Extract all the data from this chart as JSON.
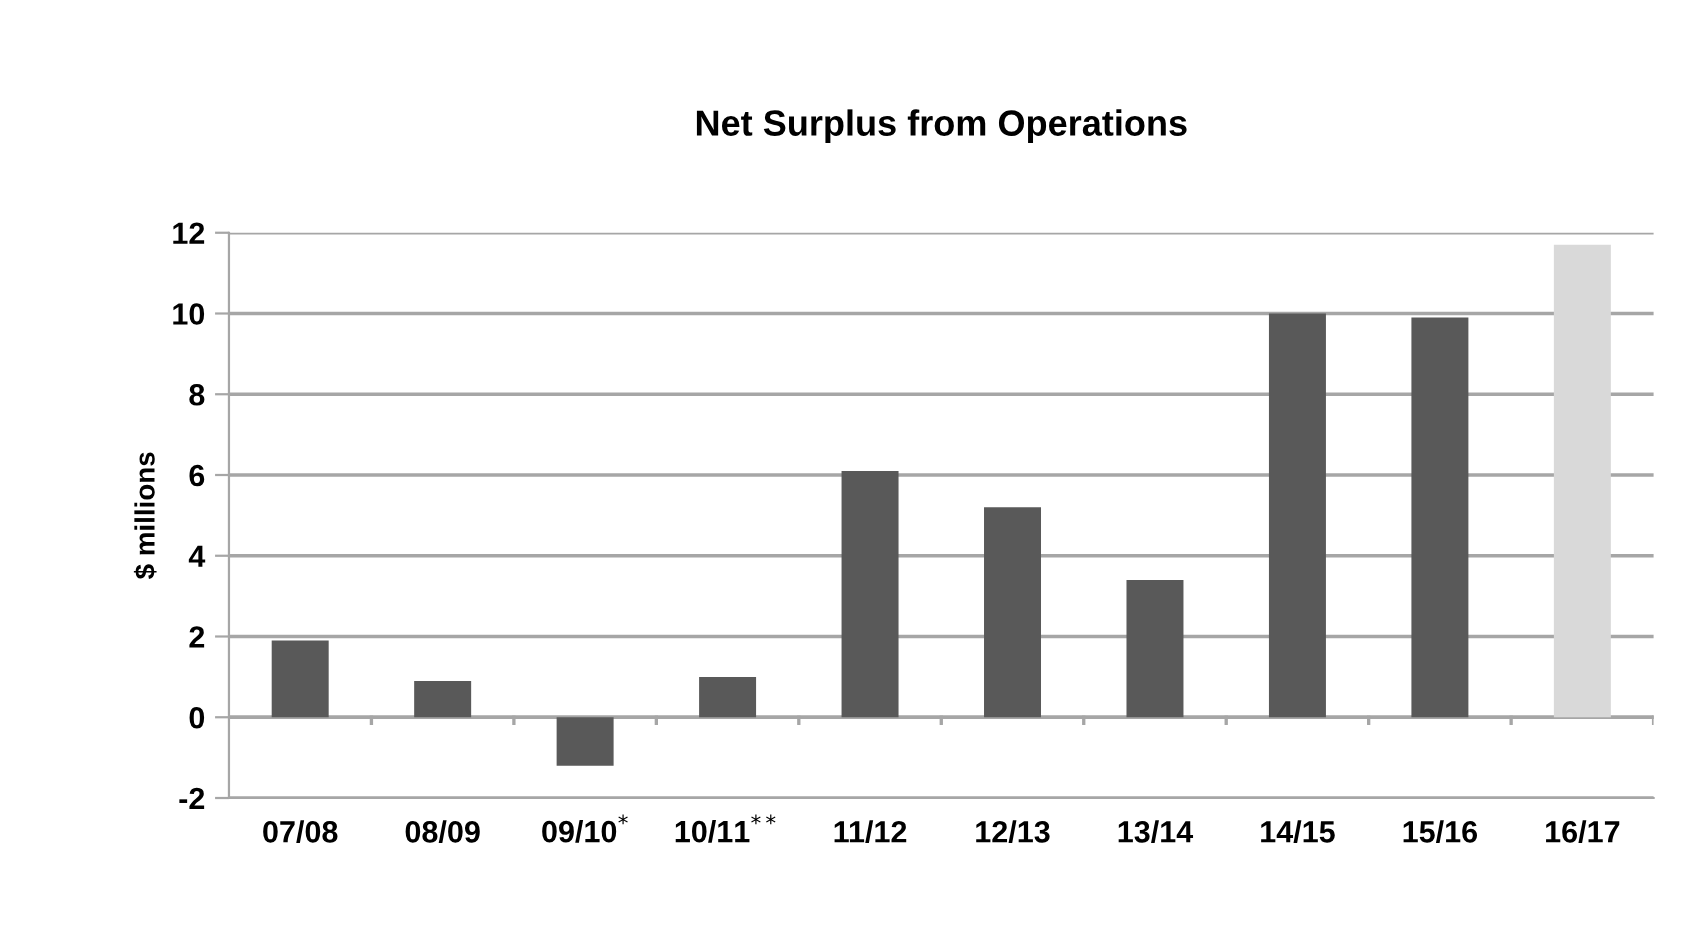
{
  "chart_data": {
    "type": "bar",
    "title": "Net Surplus from Operations",
    "ylabel": "$ millions",
    "categories": [
      "07/08",
      "08/09",
      "09/10$^{*}$",
      "10/11$^{**}$",
      "11/12",
      "12/13",
      "13/14",
      "14/15",
      "15/16",
      "16/17"
    ],
    "values": [
      1.9,
      0.9,
      -1.2,
      1.0,
      6.1,
      5.2,
      3.4,
      10.0,
      9.9,
      11.7
    ],
    "colors": [
      "#595959",
      "#595959",
      "#595959",
      "#595959",
      "#595959",
      "#595959",
      "#595959",
      "#595959",
      "#595959",
      "#d9d9d9"
    ],
    "ylim": [
      -2,
      12
    ],
    "yticks": [
      -2,
      0,
      2,
      4,
      6,
      8,
      10,
      12
    ],
    "grid": "y",
    "legend": false
  }
}
